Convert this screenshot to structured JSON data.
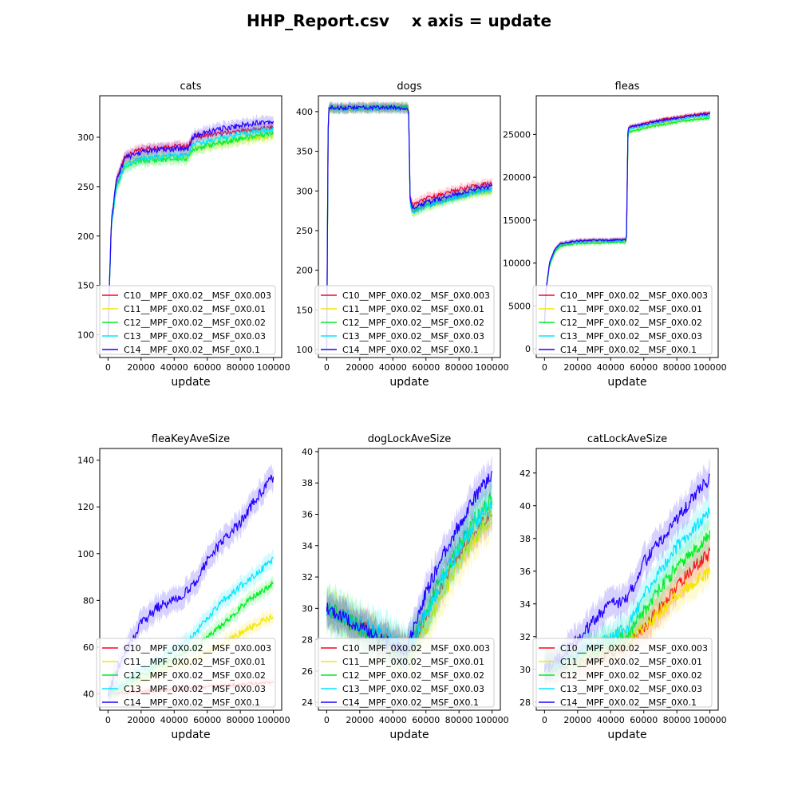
{
  "figure": {
    "title": "HHP_Report.csv    x axis = update"
  },
  "chart_data": [
    {
      "type": "line",
      "title": "cats",
      "xlabel": "update",
      "ylabel": "",
      "xlim": [
        -5000,
        105000
      ],
      "ylim": [
        77,
        342
      ],
      "xticks": [
        0,
        20000,
        40000,
        60000,
        80000,
        100000
      ],
      "yticks": [
        100,
        150,
        200,
        250,
        300
      ],
      "legend": "lower-left",
      "x": [
        0,
        2000,
        5000,
        10000,
        20000,
        30000,
        40000,
        49000,
        51000,
        60000,
        70000,
        80000,
        90000,
        100000
      ],
      "series": [
        {
          "name": "C10__MPF_0X0.02__MSF_0X0.003",
          "color": "#ff0022",
          "band": 5,
          "values": [
            100,
            215,
            255,
            280,
            288,
            290,
            291,
            291,
            300,
            302,
            304,
            306,
            308,
            310
          ]
        },
        {
          "name": "C11__MPF_0X0.02__MSF_0X0.01",
          "color": "#f5e600",
          "band": 6,
          "values": [
            100,
            212,
            250,
            272,
            278,
            280,
            280,
            281,
            289,
            291,
            294,
            297,
            300,
            302
          ]
        },
        {
          "name": "C12__MPF_0X0.02__MSF_0X0.02",
          "color": "#00ee22",
          "band": 6,
          "values": [
            100,
            210,
            248,
            270,
            276,
            277,
            278,
            279,
            288,
            292,
            295,
            299,
            302,
            305
          ]
        },
        {
          "name": "C13__MPF_0X0.02__MSF_0X0.03",
          "color": "#00e5ff",
          "band": 6,
          "values": [
            100,
            212,
            250,
            272,
            278,
            280,
            281,
            282,
            292,
            296,
            300,
            303,
            306,
            308
          ]
        },
        {
          "name": "C14__MPF_0X0.02__MSF_0X0.1",
          "color": "#2200ff",
          "band": 6,
          "values": [
            100,
            215,
            255,
            279,
            285,
            287,
            288,
            289,
            300,
            305,
            309,
            312,
            315,
            316
          ]
        }
      ]
    },
    {
      "type": "line",
      "title": "dogs",
      "xlabel": "update",
      "ylabel": "",
      "xlim": [
        -5000,
        105000
      ],
      "ylim": [
        90,
        420
      ],
      "xticks": [
        0,
        20000,
        40000,
        60000,
        80000,
        100000
      ],
      "yticks": [
        100,
        150,
        200,
        250,
        300,
        350,
        400
      ],
      "legend": "lower-left",
      "x": [
        0,
        1000,
        2000,
        10000,
        20000,
        30000,
        40000,
        49500,
        50500,
        52000,
        60000,
        70000,
        80000,
        90000,
        100000
      ],
      "series": [
        {
          "name": "C10__MPF_0X0.02__MSF_0X0.003",
          "color": "#ff0022",
          "band": 6,
          "values": [
            100,
            404,
            405,
            405,
            405,
            405,
            405,
            405,
            290,
            282,
            290,
            296,
            302,
            306,
            310
          ]
        },
        {
          "name": "C11__MPF_0X0.02__MSF_0X0.01",
          "color": "#f5e600",
          "band": 6,
          "values": [
            100,
            403,
            404,
            404,
            404,
            404,
            404,
            404,
            282,
            273,
            280,
            286,
            292,
            297,
            300
          ]
        },
        {
          "name": "C12__MPF_0X0.02__MSF_0X0.02",
          "color": "#00ee22",
          "band": 6,
          "values": [
            100,
            404,
            405,
            405,
            405,
            405,
            405,
            405,
            284,
            275,
            282,
            288,
            294,
            299,
            303
          ]
        },
        {
          "name": "C13__MPF_0X0.02__MSF_0X0.03",
          "color": "#00e5ff",
          "band": 6,
          "values": [
            100,
            403,
            404,
            404,
            404,
            404,
            404,
            404,
            283,
            272,
            281,
            287,
            293,
            298,
            302
          ]
        },
        {
          "name": "C14__MPF_0X0.02__MSF_0X0.1",
          "color": "#2200ff",
          "band": 6,
          "values": [
            100,
            404,
            405,
            405,
            405,
            405,
            405,
            405,
            286,
            278,
            285,
            291,
            297,
            302,
            306
          ]
        }
      ]
    },
    {
      "type": "line",
      "title": "fleas",
      "xlabel": "update",
      "ylabel": "",
      "xlim": [
        -5000,
        105000
      ],
      "ylim": [
        -1000,
        29500
      ],
      "xticks": [
        0,
        20000,
        40000,
        60000,
        80000,
        100000
      ],
      "yticks": [
        0,
        5000,
        10000,
        15000,
        20000,
        25000
      ],
      "legend": "lower-left",
      "x": [
        0,
        1000,
        3000,
        6000,
        10000,
        20000,
        30000,
        40000,
        49500,
        50500,
        60000,
        70000,
        80000,
        90000,
        100000
      ],
      "series": [
        {
          "name": "C10__MPF_0X0.02__MSF_0X0.003",
          "color": "#ff0022",
          "band": 250,
          "values": [
            3000,
            7000,
            10000,
            11500,
            12300,
            12600,
            12650,
            12700,
            12750,
            25800,
            26300,
            26700,
            27000,
            27300,
            27500
          ]
        },
        {
          "name": "C11__MPF_0X0.02__MSF_0X0.01",
          "color": "#f5e600",
          "band": 250,
          "values": [
            3000,
            6900,
            9800,
            11300,
            12100,
            12400,
            12450,
            12500,
            12550,
            25300,
            25800,
            26200,
            26500,
            26800,
            27000
          ]
        },
        {
          "name": "C12__MPF_0X0.02__MSF_0X0.02",
          "color": "#00ee22",
          "band": 250,
          "values": [
            3000,
            6800,
            9700,
            11200,
            12000,
            12300,
            12350,
            12400,
            12450,
            25200,
            25700,
            26100,
            26400,
            26700,
            26900
          ]
        },
        {
          "name": "C13__MPF_0X0.02__MSF_0X0.03",
          "color": "#00e5ff",
          "band": 250,
          "values": [
            3000,
            6900,
            9900,
            11400,
            12200,
            12500,
            12550,
            12600,
            12650,
            25500,
            26000,
            26400,
            26700,
            27000,
            27200
          ]
        },
        {
          "name": "C14__MPF_0X0.02__MSF_0X0.1",
          "color": "#2200ff",
          "band": 250,
          "values": [
            3000,
            7000,
            10000,
            11500,
            12300,
            12600,
            12650,
            12700,
            12750,
            25800,
            26200,
            26600,
            26900,
            27200,
            27400
          ]
        }
      ]
    },
    {
      "type": "line",
      "title": "fleaKeyAveSize",
      "xlabel": "update",
      "ylabel": "",
      "xlim": [
        -5000,
        105000
      ],
      "ylim": [
        33,
        145
      ],
      "xticks": [
        0,
        20000,
        40000,
        60000,
        80000,
        100000
      ],
      "yticks": [
        40,
        60,
        80,
        100,
        120,
        140
      ],
      "legend": "lower-left",
      "x": [
        0,
        10000,
        20000,
        30000,
        40000,
        50000,
        60000,
        70000,
        80000,
        90000,
        100000
      ],
      "series": [
        {
          "name": "C10__MPF_0X0.02__MSF_0X0.003",
          "color": "#ff0022",
          "band": 1.5,
          "values": [
            40,
            40.5,
            41,
            41.5,
            42,
            42.5,
            43,
            43.5,
            44,
            44.5,
            45
          ]
        },
        {
          "name": "C11__MPF_0X0.02__MSF_0X0.01",
          "color": "#f5e600",
          "band": 3,
          "values": [
            40,
            43,
            46,
            49,
            52,
            54,
            58,
            62,
            66,
            70,
            73
          ]
        },
        {
          "name": "C12__MPF_0X0.02__MSF_0X0.02",
          "color": "#00ee22",
          "band": 3,
          "values": [
            40,
            44,
            48,
            52,
            55,
            59,
            64,
            70,
            77,
            83,
            87
          ]
        },
        {
          "name": "C13__MPF_0X0.02__MSF_0X0.03",
          "color": "#00e5ff",
          "band": 3.5,
          "values": [
            40,
            45,
            50,
            55,
            59,
            64,
            72,
            80,
            86,
            92,
            97
          ]
        },
        {
          "name": "C14__MPF_0X0.02__MSF_0X0.1",
          "color": "#2200ff",
          "band": 5,
          "values": [
            40,
            58,
            70,
            77,
            80,
            85,
            97,
            106,
            113,
            124,
            133
          ]
        }
      ]
    },
    {
      "type": "line",
      "title": "dogLockAveSize",
      "xlabel": "update",
      "ylabel": "",
      "xlim": [
        -5000,
        105000
      ],
      "ylim": [
        23.5,
        40.2
      ],
      "xticks": [
        0,
        20000,
        40000,
        60000,
        80000,
        100000
      ],
      "yticks": [
        24,
        26,
        28,
        30,
        32,
        34,
        36,
        38,
        40
      ],
      "legend": "lower-left",
      "x": [
        0,
        10000,
        20000,
        30000,
        40000,
        48000,
        52000,
        60000,
        70000,
        80000,
        90000,
        100000
      ],
      "series": [
        {
          "name": "C10__MPF_0X0.02__MSF_0X0.003",
          "color": "#ff0022",
          "band": 1.0,
          "values": [
            30,
            29.5,
            29,
            28.3,
            27.8,
            27.3,
            27.8,
            29.5,
            31.5,
            33.5,
            35,
            36.3
          ]
        },
        {
          "name": "C11__MPF_0X0.02__MSF_0X0.01",
          "color": "#f5e600",
          "band": 1.2,
          "values": [
            30,
            29.4,
            28.7,
            28,
            27.4,
            26.8,
            27.2,
            28.8,
            30.8,
            32.8,
            34.5,
            35.8
          ]
        },
        {
          "name": "C12__MPF_0X0.02__MSF_0X0.02",
          "color": "#00ee22",
          "band": 1.3,
          "values": [
            30,
            29.4,
            28.8,
            28.2,
            27.6,
            27.1,
            27.8,
            29.8,
            32,
            34,
            35.8,
            37
          ]
        },
        {
          "name": "C13__MPF_0X0.02__MSF_0X0.03",
          "color": "#00e5ff",
          "band": 1.3,
          "values": [
            30,
            29.5,
            29,
            28.5,
            28,
            27.4,
            27.9,
            29.6,
            31.8,
            33.8,
            35.5,
            36.6
          ]
        },
        {
          "name": "C14__MPF_0X0.02__MSF_0X0.1",
          "color": "#2200ff",
          "band": 1.0,
          "values": [
            30,
            29.4,
            28.8,
            28.2,
            27.6,
            27.2,
            28.5,
            31,
            33.3,
            35.3,
            37.2,
            38.5
          ]
        }
      ]
    },
    {
      "type": "line",
      "title": "catLockAveSize",
      "xlabel": "update",
      "ylabel": "",
      "xlim": [
        -5000,
        105000
      ],
      "ylim": [
        27.5,
        43.5
      ],
      "xticks": [
        0,
        20000,
        40000,
        60000,
        80000,
        100000
      ],
      "yticks": [
        28,
        30,
        32,
        34,
        36,
        38,
        40,
        42
      ],
      "legend": "lower-left",
      "x": [
        0,
        10000,
        20000,
        30000,
        40000,
        50000,
        60000,
        70000,
        80000,
        90000,
        100000
      ],
      "series": [
        {
          "name": "C10__MPF_0X0.02__MSF_0X0.003",
          "color": "#ff0022",
          "band": 0.9,
          "values": [
            30,
            30.3,
            30.5,
            30.8,
            31,
            31.5,
            32.5,
            33.8,
            35,
            36.2,
            37.1
          ]
        },
        {
          "name": "C11__MPF_0X0.02__MSF_0X0.01",
          "color": "#f5e600",
          "band": 0.9,
          "values": [
            30,
            30.3,
            30.6,
            30.9,
            31.2,
            31.6,
            32.5,
            33.5,
            34.5,
            35.3,
            36
          ]
        },
        {
          "name": "C12__MPF_0X0.02__MSF_0X0.02",
          "color": "#00ee22",
          "band": 0.9,
          "values": [
            30,
            30.4,
            30.8,
            31.2,
            31.6,
            32,
            33.5,
            35,
            36.2,
            37.2,
            38.2
          ]
        },
        {
          "name": "C13__MPF_0X0.02__MSF_0X0.03",
          "color": "#00e5ff",
          "band": 0.9,
          "values": [
            30,
            30.5,
            31,
            31.5,
            32,
            32.5,
            34.5,
            36,
            37.5,
            38.6,
            39.6
          ]
        },
        {
          "name": "C14__MPF_0X0.02__MSF_0X0.1",
          "color": "#2200ff",
          "band": 0.9,
          "values": [
            30,
            30.8,
            31.8,
            33,
            34,
            34.3,
            36.5,
            37.8,
            39.2,
            40.5,
            41.7
          ]
        }
      ]
    }
  ]
}
